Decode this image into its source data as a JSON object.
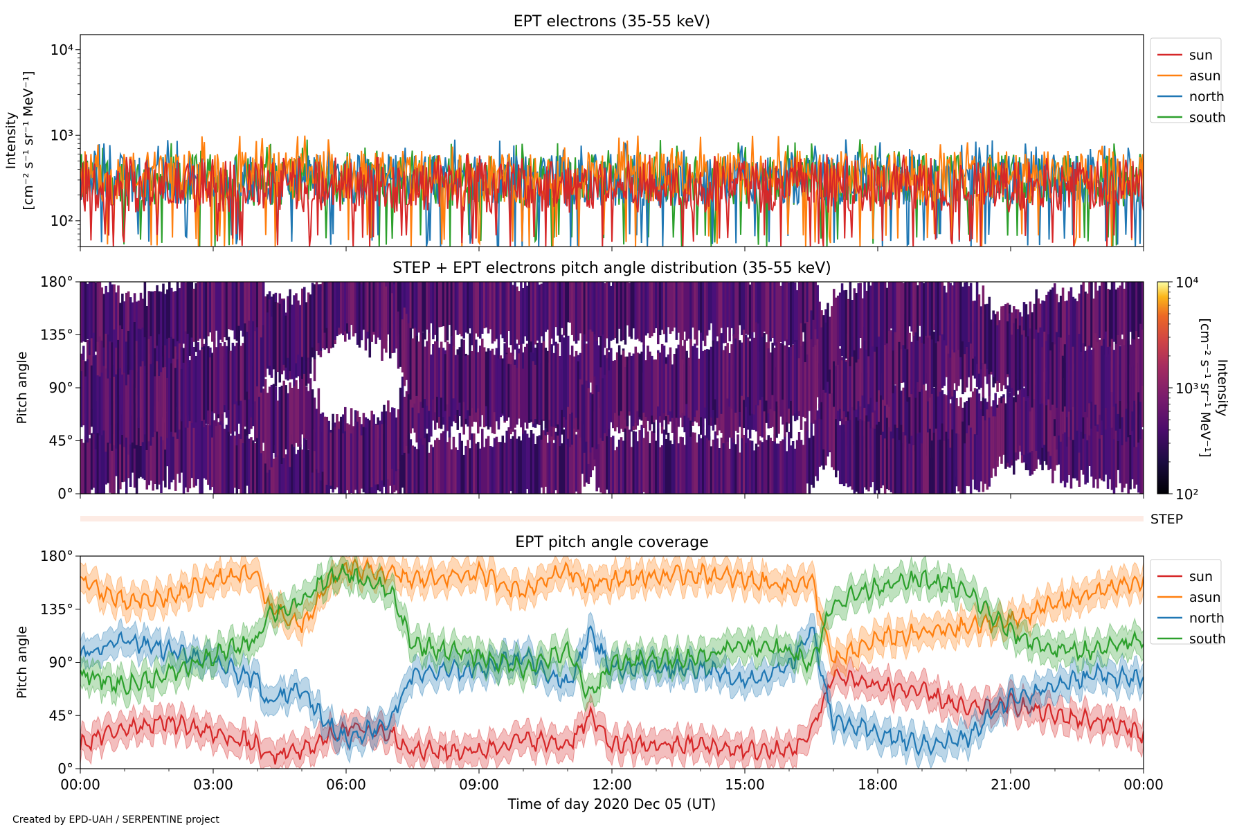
{
  "figure": {
    "credit": "Created by EPD-UAH / SERPENTINE project",
    "xlabel": "Time of day 2020 Dec 05 (UT)",
    "xticks": [
      "00:00",
      "03:00",
      "06:00",
      "09:00",
      "12:00",
      "15:00",
      "18:00",
      "21:00",
      "00:00"
    ]
  },
  "chart_data": [
    {
      "type": "line",
      "title": "EPT electrons (35-55 keV)",
      "ylabel_line1": "Intensity",
      "ylabel_line2": "[cm⁻² s⁻¹ sr⁻¹ MeV⁻¹]",
      "yscale": "log",
      "ylim": [
        50,
        15000
      ],
      "yticks": [
        100,
        1000,
        10000
      ],
      "ytick_labels": [
        "10²",
        "10³",
        "10⁴"
      ],
      "xlim_hours": [
        0,
        24
      ],
      "legend_position": "outside-right-top",
      "series": [
        {
          "name": "sun",
          "color": "#d62728",
          "typical": 250,
          "range": [
            50,
            600
          ]
        },
        {
          "name": "asun",
          "color": "#ff7f0e",
          "typical": 330,
          "range": [
            50,
            1000
          ]
        },
        {
          "name": "north",
          "color": "#1f77b4",
          "typical": 300,
          "range": [
            50,
            900
          ]
        },
        {
          "name": "south",
          "color": "#2ca02c",
          "typical": 300,
          "range": [
            50,
            900
          ]
        }
      ]
    },
    {
      "type": "heatmap",
      "title": "STEP + EPT electrons pitch angle distribution (35-55 keV)",
      "ylabel": "Pitch angle",
      "ylim": [
        0,
        180
      ],
      "yticks": [
        0,
        45,
        90,
        135,
        180
      ],
      "ytick_labels": [
        "0°",
        "45°",
        "90°",
        "135°",
        "180°"
      ],
      "colorbar": {
        "scale": "log",
        "range": [
          100,
          10000
        ],
        "tick_labels": [
          "10²",
          "10³",
          "10⁴"
        ],
        "label_line1": "Intensity",
        "label_line2": "[cm⁻² s⁻¹ sr⁻¹ MeV⁻¹]",
        "colormap": "inferno"
      },
      "typical_intensity": 300,
      "strip_label": "STEP"
    },
    {
      "type": "line",
      "title": "EPT pitch angle coverage",
      "ylabel": "Pitch angle",
      "ylim": [
        0,
        180
      ],
      "yticks": [
        0,
        45,
        90,
        135,
        180
      ],
      "ytick_labels": [
        "0°",
        "45°",
        "90°",
        "135°",
        "180°"
      ],
      "x_hours": [
        0,
        1,
        2,
        3,
        4,
        4.2,
        5,
        5.5,
        6,
        7,
        7.5,
        9,
        10,
        11,
        11.5,
        12,
        14,
        15,
        16,
        16.5,
        17,
        18,
        19,
        20,
        21,
        22,
        23,
        24
      ],
      "legend_position": "outside-right-top",
      "band_halfwidth_deg": 12,
      "series": [
        {
          "name": "sun",
          "color": "#d62728",
          "values": [
            20,
            35,
            40,
            30,
            20,
            10,
            15,
            25,
            35,
            30,
            15,
            15,
            25,
            20,
            45,
            20,
            20,
            15,
            15,
            30,
            80,
            70,
            65,
            50,
            55,
            45,
            40,
            30
          ]
        },
        {
          "name": "asun",
          "color": "#ff7f0e",
          "values": [
            160,
            140,
            145,
            160,
            165,
            140,
            120,
            150,
            170,
            165,
            160,
            165,
            150,
            170,
            155,
            160,
            165,
            160,
            155,
            160,
            90,
            110,
            115,
            120,
            125,
            140,
            150,
            160
          ]
        },
        {
          "name": "north",
          "color": "#1f77b4",
          "values": [
            95,
            110,
            100,
            90,
            75,
            55,
            70,
            40,
            25,
            40,
            80,
            85,
            95,
            70,
            115,
            85,
            85,
            75,
            85,
            120,
            40,
            30,
            20,
            25,
            60,
            70,
            80,
            75
          ]
        },
        {
          "name": "south",
          "color": "#2ca02c",
          "values": [
            80,
            70,
            80,
            95,
            110,
            130,
            140,
            160,
            165,
            150,
            105,
            95,
            85,
            100,
            60,
            90,
            95,
            105,
            100,
            90,
            140,
            155,
            160,
            150,
            115,
            100,
            100,
            110
          ]
        }
      ]
    }
  ]
}
